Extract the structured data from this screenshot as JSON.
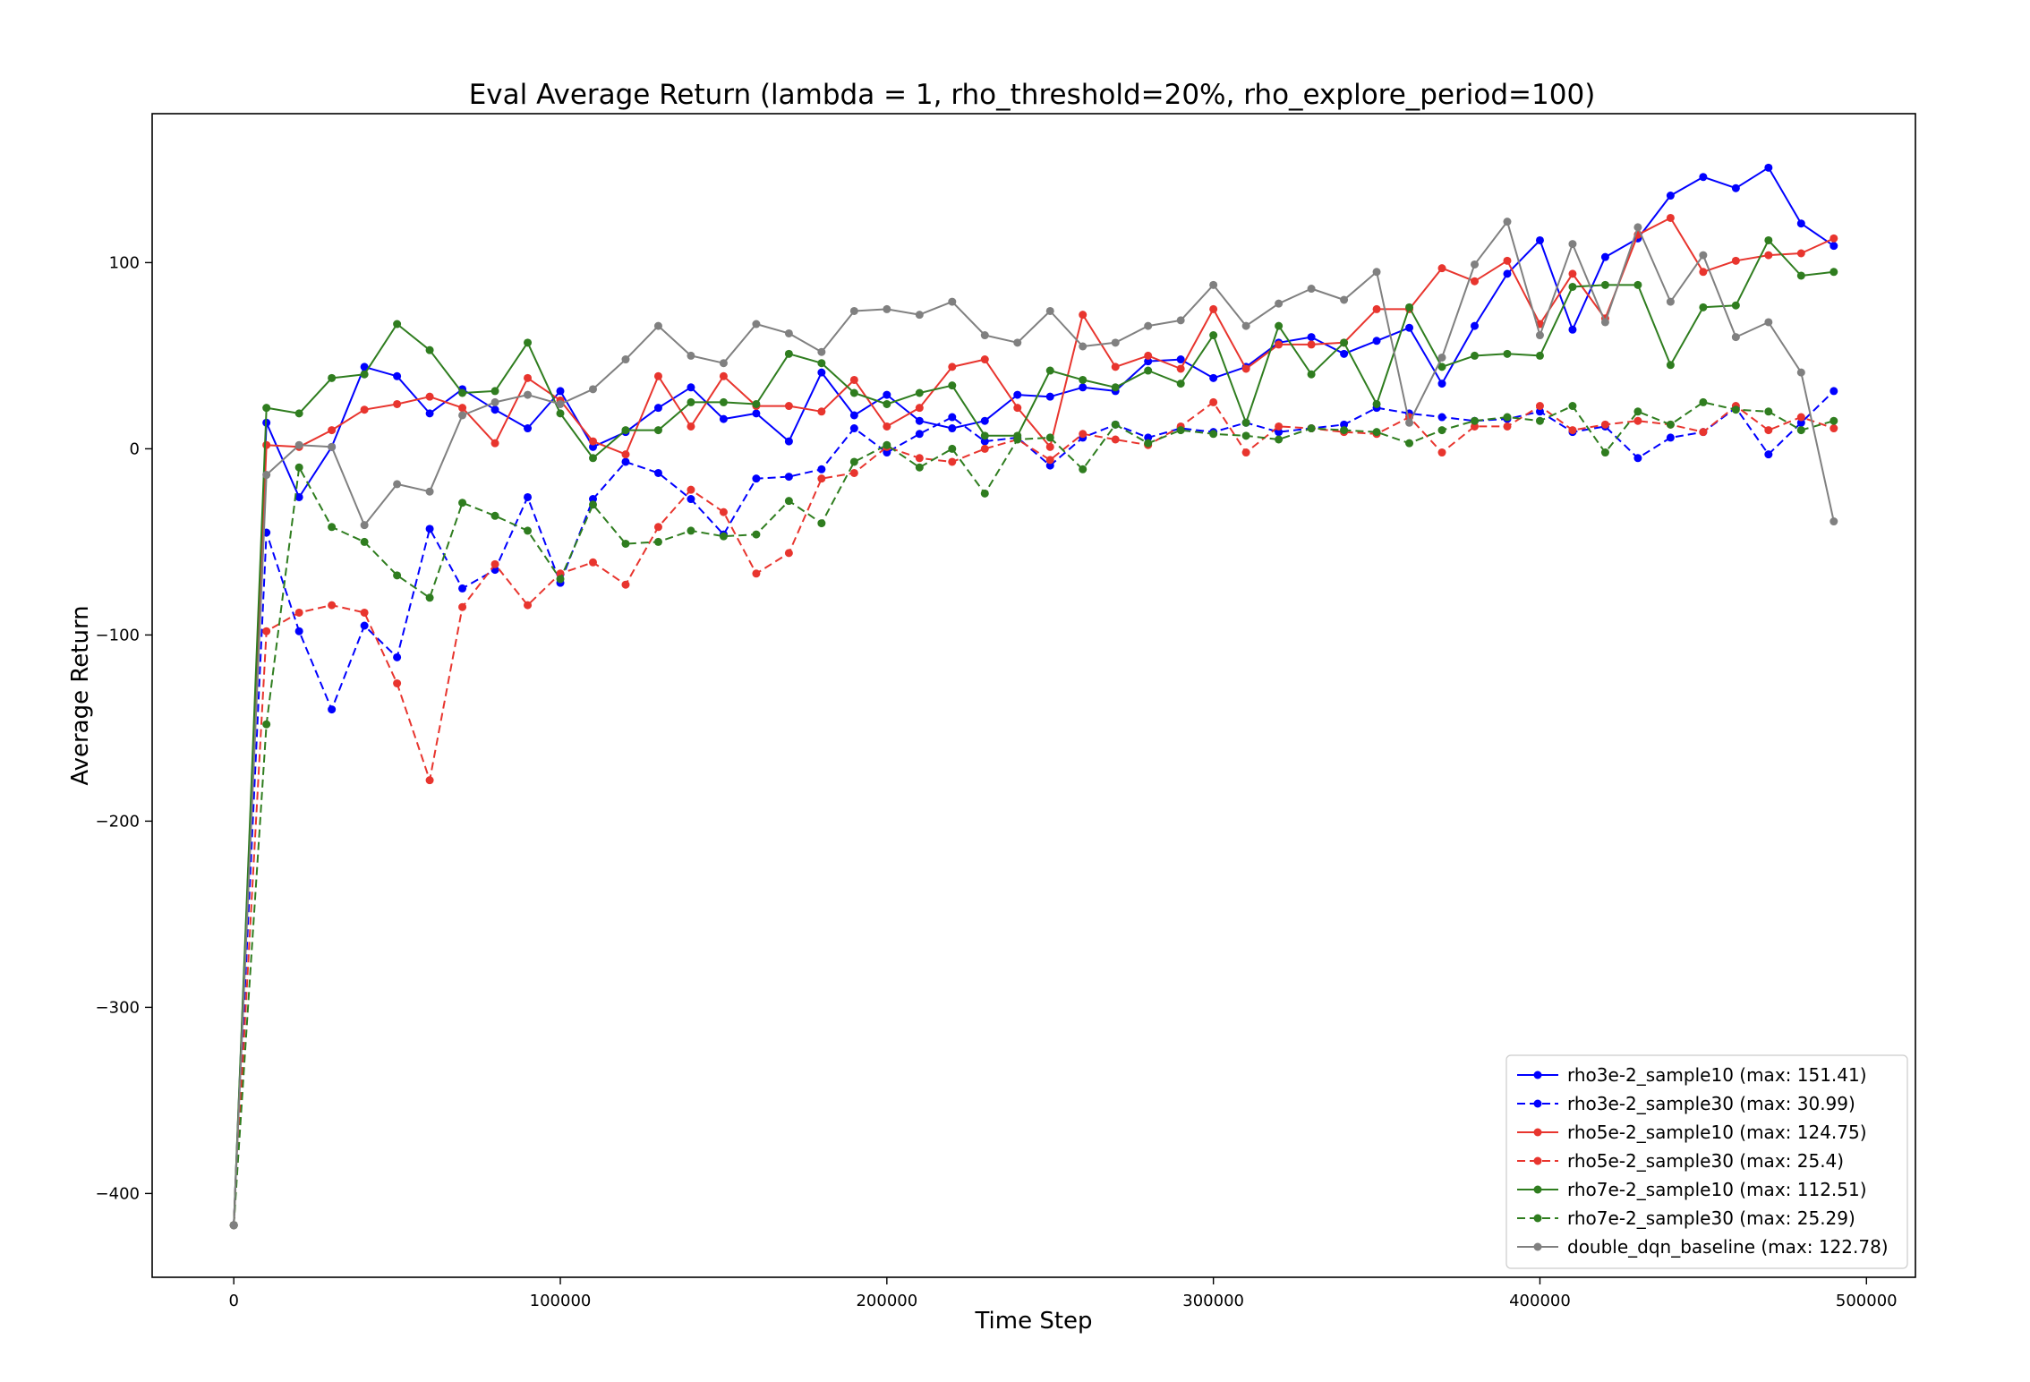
{
  "chart_data": {
    "type": "line",
    "title": "Eval Average Return (lambda = 1, rho_threshold=20%, rho_explore_period=100)",
    "xlabel": "Time Step",
    "ylabel": "Average Return",
    "xlim": [
      -25000,
      515000
    ],
    "ylim": [
      -445,
      180
    ],
    "xticks": [
      0,
      100000,
      200000,
      300000,
      400000,
      500000
    ],
    "yticks": [
      -400,
      -300,
      -200,
      -100,
      0,
      100
    ],
    "grid": false,
    "legend_position": "bottom-right",
    "x": [
      0,
      10000,
      20000,
      30000,
      40000,
      50000,
      60000,
      70000,
      80000,
      90000,
      100000,
      110000,
      120000,
      130000,
      140000,
      150000,
      160000,
      170000,
      180000,
      190000,
      200000,
      210000,
      220000,
      230000,
      240000,
      250000,
      260000,
      270000,
      280000,
      290000,
      300000,
      310000,
      320000,
      330000,
      340000,
      350000,
      360000,
      370000,
      380000,
      390000,
      400000,
      410000,
      420000,
      430000,
      440000,
      450000,
      460000,
      470000,
      480000,
      490000
    ],
    "series": [
      {
        "name": "rho3e-2_sample10",
        "legend_label": "rho3e-2_sample10  (max: 151.41)",
        "color": "#0000ff",
        "linestyle": "solid",
        "values": [
          -417,
          14,
          -26,
          1,
          44,
          39,
          19,
          32,
          21,
          11,
          31,
          1,
          9,
          22,
          33,
          16,
          19,
          4,
          41,
          18,
          29,
          15,
          11,
          15,
          29,
          28,
          33,
          31,
          47,
          48,
          38,
          44,
          57,
          60,
          51,
          58,
          65,
          35,
          66,
          94,
          112,
          64,
          103,
          113,
          136,
          146,
          140,
          151,
          121,
          109
        ]
      },
      {
        "name": "rho3e-2_sample30",
        "legend_label": "rho3e-2_sample30  (max: 30.99)",
        "color": "#0000ff",
        "linestyle": "dashed",
        "values": [
          -417,
          -45,
          -98,
          -140,
          -95,
          -112,
          -43,
          -75,
          -65,
          -26,
          -72,
          -27,
          -7,
          -13,
          -27,
          -46,
          -16,
          -15,
          -11,
          11,
          -2,
          8,
          17,
          4,
          6,
          -9,
          6,
          13,
          6,
          11,
          9,
          14,
          9,
          11,
          13,
          22,
          19,
          17,
          15,
          16,
          20,
          9,
          12,
          -5,
          6,
          9,
          22,
          -3,
          14,
          31
        ]
      },
      {
        "name": "rho5e-2_sample10",
        "legend_label": "rho5e-2_sample10  (max: 124.75)",
        "color": "#e8352e",
        "linestyle": "solid",
        "values": [
          -417,
          2,
          1,
          10,
          21,
          24,
          28,
          22,
          3,
          38,
          26,
          4,
          -3,
          39,
          12,
          39,
          23,
          23,
          20,
          37,
          12,
          22,
          44,
          48,
          22,
          1,
          72,
          44,
          50,
          43,
          75,
          43,
          56,
          56,
          57,
          75,
          75,
          97,
          90,
          101,
          67,
          94,
          70,
          115,
          124,
          95,
          101,
          104,
          105,
          113
        ]
      },
      {
        "name": "rho5e-2_sample30",
        "legend_label": "rho5e-2_sample30  (max: 25.4)",
        "color": "#e8352e",
        "linestyle": "dashed",
        "values": [
          -417,
          -98,
          -88,
          -84,
          -88,
          -126,
          -178,
          -85,
          -62,
          -84,
          -67,
          -61,
          -73,
          -42,
          -22,
          -34,
          -67,
          -56,
          -16,
          -13,
          1,
          -5,
          -7,
          0,
          5,
          -6,
          8,
          5,
          2,
          12,
          25,
          -2,
          12,
          11,
          9,
          8,
          17,
          -2,
          12,
          12,
          23,
          10,
          13,
          15,
          13,
          9,
          23,
          10,
          17,
          11
        ]
      },
      {
        "name": "rho7e-2_sample10",
        "legend_label": "rho7e-2_sample10  (max: 112.51)",
        "color": "#2f7d1f",
        "linestyle": "solid",
        "values": [
          -417,
          22,
          19,
          38,
          40,
          67,
          53,
          30,
          31,
          57,
          19,
          -5,
          10,
          10,
          25,
          25,
          24,
          51,
          46,
          30,
          24,
          30,
          34,
          7,
          7,
          42,
          37,
          33,
          42,
          35,
          61,
          14,
          66,
          40,
          57,
          24,
          76,
          44,
          50,
          51,
          50,
          87,
          88,
          88,
          45,
          76,
          77,
          112,
          93,
          95
        ]
      },
      {
        "name": "rho7e-2_sample30",
        "legend_label": "rho7e-2_sample30  (max: 25.29)",
        "color": "#2f7d1f",
        "linestyle": "dashed",
        "values": [
          -417,
          -148,
          -10,
          -42,
          -50,
          -68,
          -80,
          -29,
          -36,
          -44,
          -70,
          -30,
          -51,
          -50,
          -44,
          -47,
          -46,
          -28,
          -40,
          -7,
          2,
          -10,
          0,
          -24,
          5,
          6,
          -11,
          13,
          3,
          10,
          8,
          7,
          5,
          11,
          10,
          9,
          3,
          10,
          15,
          17,
          15,
          23,
          -2,
          20,
          13,
          25,
          21,
          20,
          10,
          15
        ]
      },
      {
        "name": "double_dqn_baseline",
        "legend_label": "double_dqn_baseline  (max: 122.78)",
        "color": "#808080",
        "linestyle": "solid",
        "values": [
          -417,
          -14,
          2,
          1,
          -41,
          -19,
          -23,
          18,
          25,
          29,
          24,
          32,
          48,
          66,
          50,
          46,
          67,
          62,
          52,
          74,
          75,
          72,
          79,
          61,
          57,
          74,
          55,
          57,
          66,
          69,
          88,
          66,
          78,
          86,
          80,
          95,
          14,
          49,
          99,
          122,
          61,
          110,
          68,
          119,
          79,
          104,
          60,
          68,
          41,
          -39
        ]
      }
    ]
  }
}
